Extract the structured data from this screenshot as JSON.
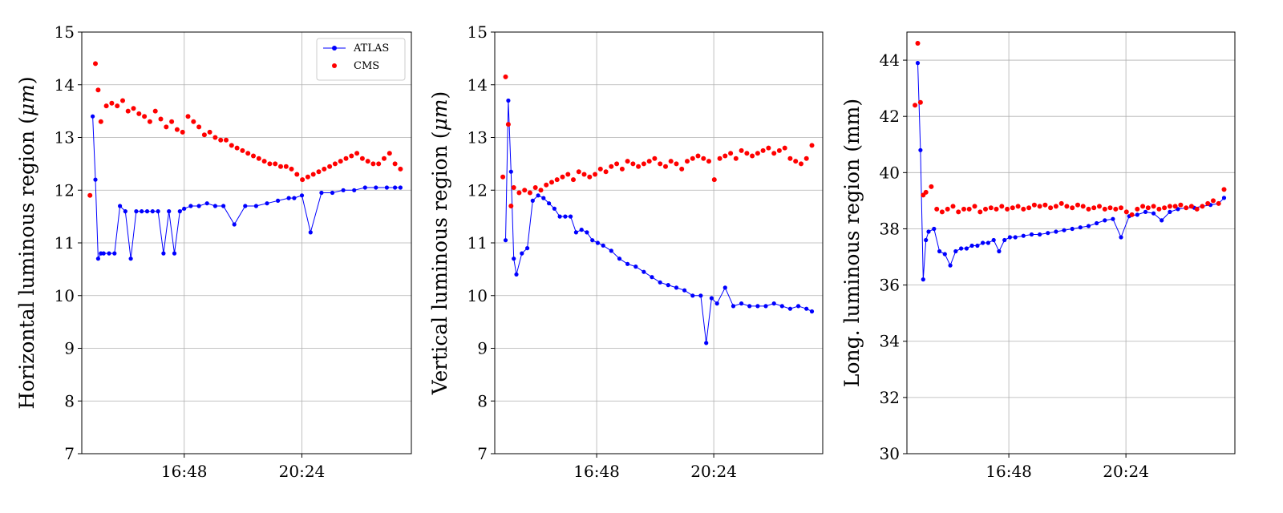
{
  "chart_data": [
    {
      "type": "line",
      "ylabel": "Horizontal luminous region (",
      "ylabel_unit": "μm",
      "ylabel_end": ")",
      "ylim": [
        7,
        15
      ],
      "yticks": [
        "7",
        "8",
        "9",
        "10",
        "11",
        "12",
        "13",
        "14",
        "15"
      ],
      "xlim": [
        "13:40",
        "23:45"
      ],
      "xticks": [
        "16:48",
        "20:24"
      ],
      "grid": true,
      "legend": {
        "placement": "top-right",
        "entries": [
          "ATLAS",
          "CMS"
        ]
      },
      "series": [
        {
          "name": "ATLAS",
          "color": "#0000ff",
          "style": "line-markers",
          "x": [
            "14:00",
            "14:05",
            "14:10",
            "14:15",
            "14:20",
            "14:30",
            "14:40",
            "14:50",
            "15:00",
            "15:10",
            "15:20",
            "15:30",
            "15:40",
            "15:50",
            "16:00",
            "16:10",
            "16:20",
            "16:30",
            "16:40",
            "16:48",
            "17:00",
            "17:15",
            "17:30",
            "17:45",
            "18:00",
            "18:20",
            "18:40",
            "19:00",
            "19:20",
            "19:40",
            "20:00",
            "20:10",
            "20:24",
            "20:40",
            "21:00",
            "21:20",
            "21:40",
            "22:00",
            "22:20",
            "22:40",
            "23:00",
            "23:15",
            "23:25"
          ],
          "values": [
            13.4,
            12.2,
            10.7,
            10.8,
            10.8,
            10.8,
            10.8,
            11.7,
            11.6,
            10.7,
            11.6,
            11.6,
            11.6,
            11.6,
            11.6,
            10.8,
            11.6,
            10.8,
            11.6,
            11.65,
            11.7,
            11.7,
            11.75,
            11.7,
            11.7,
            11.35,
            11.7,
            11.7,
            11.75,
            11.8,
            11.85,
            11.85,
            11.9,
            11.2,
            11.95,
            11.95,
            12.0,
            12.0,
            12.05,
            12.05,
            12.05,
            12.05,
            12.05
          ]
        },
        {
          "name": "CMS",
          "color": "#ff0000",
          "style": "markers",
          "x": [
            "13:55",
            "14:05",
            "14:10",
            "14:15",
            "14:25",
            "14:35",
            "14:45",
            "14:55",
            "15:05",
            "15:15",
            "15:25",
            "15:35",
            "15:45",
            "15:55",
            "16:05",
            "16:15",
            "16:25",
            "16:35",
            "16:45",
            "16:55",
            "17:05",
            "17:15",
            "17:25",
            "17:35",
            "17:45",
            "17:55",
            "18:05",
            "18:15",
            "18:25",
            "18:35",
            "18:45",
            "18:55",
            "19:05",
            "19:15",
            "19:25",
            "19:35",
            "19:45",
            "19:55",
            "20:05",
            "20:15",
            "20:25",
            "20:35",
            "20:45",
            "20:55",
            "21:05",
            "21:15",
            "21:25",
            "21:35",
            "21:45",
            "21:55",
            "22:05",
            "22:15",
            "22:25",
            "22:35",
            "22:45",
            "22:55",
            "23:05",
            "23:15",
            "23:25"
          ],
          "values": [
            11.9,
            14.4,
            13.9,
            13.3,
            13.6,
            13.65,
            13.6,
            13.7,
            13.5,
            13.55,
            13.45,
            13.4,
            13.3,
            13.5,
            13.35,
            13.2,
            13.3,
            13.15,
            13.1,
            13.4,
            13.3,
            13.2,
            13.05,
            13.1,
            13.0,
            12.95,
            12.95,
            12.85,
            12.8,
            12.75,
            12.7,
            12.65,
            12.6,
            12.55,
            12.5,
            12.5,
            12.45,
            12.45,
            12.4,
            12.3,
            12.2,
            12.25,
            12.3,
            12.35,
            12.4,
            12.45,
            12.5,
            12.55,
            12.6,
            12.65,
            12.7,
            12.6,
            12.55,
            12.5,
            12.5,
            12.6,
            12.7,
            12.5,
            12.4
          ]
        }
      ]
    },
    {
      "type": "line",
      "ylabel": "Vertical luminous region (",
      "ylabel_unit": "μm",
      "ylabel_end": ")",
      "ylim": [
        7,
        15
      ],
      "yticks": [
        "7",
        "8",
        "9",
        "10",
        "11",
        "12",
        "13",
        "14",
        "15"
      ],
      "xlim": [
        "13:40",
        "23:45"
      ],
      "xticks": [
        "16:48",
        "20:24"
      ],
      "grid": true,
      "series": [
        {
          "name": "ATLAS",
          "color": "#0000ff",
          "style": "line-markers",
          "x": [
            "14:00",
            "14:05",
            "14:10",
            "14:15",
            "14:20",
            "14:30",
            "14:40",
            "14:50",
            "15:00",
            "15:10",
            "15:20",
            "15:30",
            "15:40",
            "15:50",
            "16:00",
            "16:10",
            "16:20",
            "16:30",
            "16:40",
            "16:50",
            "17:00",
            "17:15",
            "17:30",
            "17:45",
            "18:00",
            "18:15",
            "18:30",
            "18:45",
            "19:00",
            "19:15",
            "19:30",
            "19:45",
            "20:00",
            "20:10",
            "20:20",
            "20:30",
            "20:45",
            "21:00",
            "21:15",
            "21:30",
            "21:45",
            "22:00",
            "22:15",
            "22:30",
            "22:45",
            "23:00",
            "23:15",
            "23:25"
          ],
          "values": [
            11.05,
            13.7,
            12.35,
            10.7,
            10.4,
            10.8,
            10.9,
            11.8,
            11.9,
            11.85,
            11.75,
            11.65,
            11.5,
            11.5,
            11.5,
            11.2,
            11.25,
            11.2,
            11.05,
            11.0,
            10.95,
            10.85,
            10.7,
            10.6,
            10.55,
            10.45,
            10.35,
            10.25,
            10.2,
            10.15,
            10.1,
            10.0,
            10.0,
            9.1,
            9.95,
            9.85,
            10.15,
            9.8,
            9.85,
            9.8,
            9.8,
            9.8,
            9.85,
            9.8,
            9.75,
            9.8,
            9.75,
            9.7
          ]
        },
        {
          "name": "CMS",
          "color": "#ff0000",
          "style": "markers",
          "x": [
            "13:55",
            "14:00",
            "14:05",
            "14:10",
            "14:15",
            "14:25",
            "14:35",
            "14:45",
            "14:55",
            "15:05",
            "15:15",
            "15:25",
            "15:35",
            "15:45",
            "15:55",
            "16:05",
            "16:15",
            "16:25",
            "16:35",
            "16:45",
            "16:55",
            "17:05",
            "17:15",
            "17:25",
            "17:35",
            "17:45",
            "17:55",
            "18:05",
            "18:15",
            "18:25",
            "18:35",
            "18:45",
            "18:55",
            "19:05",
            "19:15",
            "19:25",
            "19:35",
            "19:45",
            "19:55",
            "20:05",
            "20:15",
            "20:25",
            "20:35",
            "20:45",
            "20:55",
            "21:05",
            "21:15",
            "21:25",
            "21:35",
            "21:45",
            "21:55",
            "22:05",
            "22:15",
            "22:25",
            "22:35",
            "22:45",
            "22:55",
            "23:05",
            "23:15",
            "23:25"
          ],
          "values": [
            12.25,
            14.15,
            13.25,
            11.7,
            12.05,
            11.95,
            12.0,
            11.95,
            12.05,
            12.0,
            12.1,
            12.15,
            12.2,
            12.25,
            12.3,
            12.2,
            12.35,
            12.3,
            12.25,
            12.3,
            12.4,
            12.35,
            12.45,
            12.5,
            12.4,
            12.55,
            12.5,
            12.45,
            12.5,
            12.55,
            12.6,
            12.5,
            12.45,
            12.55,
            12.5,
            12.4,
            12.55,
            12.6,
            12.65,
            12.6,
            12.55,
            12.2,
            12.6,
            12.65,
            12.7,
            12.6,
            12.75,
            12.7,
            12.65,
            12.7,
            12.75,
            12.8,
            12.7,
            12.75,
            12.8,
            12.6,
            12.55,
            12.5,
            12.6,
            12.85
          ]
        }
      ]
    },
    {
      "type": "line",
      "ylabel": "Long. luminous region (mm)",
      "ylim": [
        30,
        45
      ],
      "yticks": [
        "30",
        "32",
        "34",
        "36",
        "38",
        "40",
        "42",
        "44"
      ],
      "xlim": [
        "13:40",
        "23:45"
      ],
      "xticks": [
        "16:48",
        "20:24"
      ],
      "grid": true,
      "series": [
        {
          "name": "ATLAS",
          "color": "#0000ff",
          "style": "line-markers",
          "x": [
            "14:00",
            "14:05",
            "14:10",
            "14:15",
            "14:20",
            "14:30",
            "14:40",
            "14:50",
            "15:00",
            "15:10",
            "15:20",
            "15:30",
            "15:40",
            "15:50",
            "16:00",
            "16:10",
            "16:20",
            "16:30",
            "16:40",
            "16:50",
            "17:00",
            "17:15",
            "17:30",
            "17:45",
            "18:00",
            "18:15",
            "18:30",
            "18:45",
            "19:00",
            "19:15",
            "19:30",
            "19:45",
            "20:00",
            "20:15",
            "20:30",
            "20:45",
            "21:00",
            "21:15",
            "21:30",
            "21:45",
            "22:00",
            "22:15",
            "22:30",
            "22:45",
            "23:00",
            "23:15",
            "23:25"
          ],
          "values": [
            43.9,
            40.8,
            36.2,
            37.6,
            37.9,
            38.0,
            37.2,
            37.1,
            36.7,
            37.2,
            37.3,
            37.3,
            37.4,
            37.4,
            37.5,
            37.5,
            37.6,
            37.2,
            37.6,
            37.7,
            37.7,
            37.75,
            37.8,
            37.8,
            37.85,
            37.9,
            37.95,
            38.0,
            38.05,
            38.1,
            38.2,
            38.3,
            38.35,
            37.7,
            38.45,
            38.5,
            38.6,
            38.55,
            38.3,
            38.6,
            38.7,
            38.75,
            38.75,
            38.8,
            38.85,
            38.9,
            39.1
          ]
        },
        {
          "name": "CMS",
          "color": "#ff0000",
          "style": "markers",
          "x": [
            "13:55",
            "14:00",
            "14:05",
            "14:10",
            "14:15",
            "14:25",
            "14:35",
            "14:45",
            "14:55",
            "15:05",
            "15:15",
            "15:25",
            "15:35",
            "15:45",
            "15:55",
            "16:05",
            "16:15",
            "16:25",
            "16:35",
            "16:45",
            "16:55",
            "17:05",
            "17:15",
            "17:25",
            "17:35",
            "17:45",
            "17:55",
            "18:05",
            "18:15",
            "18:25",
            "18:35",
            "18:45",
            "18:55",
            "19:05",
            "19:15",
            "19:25",
            "19:35",
            "19:45",
            "19:55",
            "20:05",
            "20:15",
            "20:25",
            "20:35",
            "20:45",
            "20:55",
            "21:05",
            "21:15",
            "21:25",
            "21:35",
            "21:45",
            "21:55",
            "22:05",
            "22:15",
            "22:25",
            "22:35",
            "22:45",
            "22:55",
            "23:05",
            "23:15",
            "23:25"
          ],
          "values": [
            42.4,
            44.6,
            42.5,
            39.2,
            39.3,
            39.5,
            38.7,
            38.6,
            38.7,
            38.8,
            38.6,
            38.7,
            38.7,
            38.8,
            38.6,
            38.7,
            38.75,
            38.7,
            38.8,
            38.7,
            38.75,
            38.8,
            38.7,
            38.75,
            38.85,
            38.8,
            38.85,
            38.75,
            38.8,
            38.9,
            38.8,
            38.75,
            38.85,
            38.8,
            38.7,
            38.75,
            38.8,
            38.7,
            38.75,
            38.7,
            38.75,
            38.6,
            38.5,
            38.7,
            38.8,
            38.75,
            38.8,
            38.7,
            38.75,
            38.8,
            38.8,
            38.85,
            38.75,
            38.8,
            38.7,
            38.8,
            38.9,
            39.0,
            38.9,
            39.4
          ]
        }
      ]
    }
  ]
}
